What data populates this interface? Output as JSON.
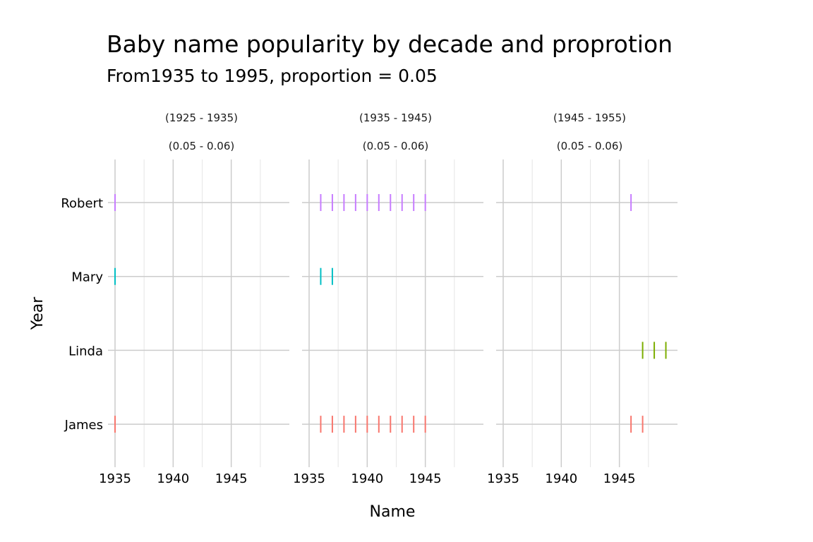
{
  "chart_data": {
    "type": "scatter",
    "mark": "vertical-tick",
    "title": "Baby name popularity by decade and proprotion",
    "subtitle": "From1935 to 1995, proportion = 0.05",
    "xlabel": "Name",
    "ylabel": "Year",
    "categories": [
      "James",
      "Linda",
      "Mary",
      "Robert"
    ],
    "xlim": [
      1935,
      1950
    ],
    "x_ticks": [
      1935,
      1940,
      1945
    ],
    "grid": true,
    "legend": "none",
    "colors": {
      "James": "#F8766D",
      "Linda": "#7CAE00",
      "Mary": "#00BFC4",
      "Robert": "#C77CFF"
    },
    "panels": [
      {
        "strip": [
          "(1925 - 1935)",
          "(0.05 - 0.06)"
        ],
        "series": [
          {
            "name": "Robert",
            "x": [
              1935
            ]
          },
          {
            "name": "Mary",
            "x": [
              1935
            ]
          },
          {
            "name": "Linda",
            "x": []
          },
          {
            "name": "James",
            "x": [
              1935
            ]
          }
        ]
      },
      {
        "strip": [
          "(1935 - 1945)",
          "(0.05 - 0.06)"
        ],
        "series": [
          {
            "name": "Robert",
            "x": [
              1936,
              1937,
              1938,
              1939,
              1940,
              1941,
              1942,
              1943,
              1944,
              1945
            ]
          },
          {
            "name": "Mary",
            "x": [
              1936,
              1937
            ]
          },
          {
            "name": "Linda",
            "x": []
          },
          {
            "name": "James",
            "x": [
              1936,
              1937,
              1938,
              1939,
              1940,
              1941,
              1942,
              1943,
              1944,
              1945
            ]
          }
        ]
      },
      {
        "strip": [
          "(1945 - 1955)",
          "(0.05 - 0.06)"
        ],
        "series": [
          {
            "name": "Robert",
            "x": [
              1946
            ]
          },
          {
            "name": "Mary",
            "x": []
          },
          {
            "name": "Linda",
            "x": [
              1947,
              1948,
              1949
            ]
          },
          {
            "name": "James",
            "x": [
              1946,
              1947
            ]
          }
        ]
      }
    ]
  }
}
